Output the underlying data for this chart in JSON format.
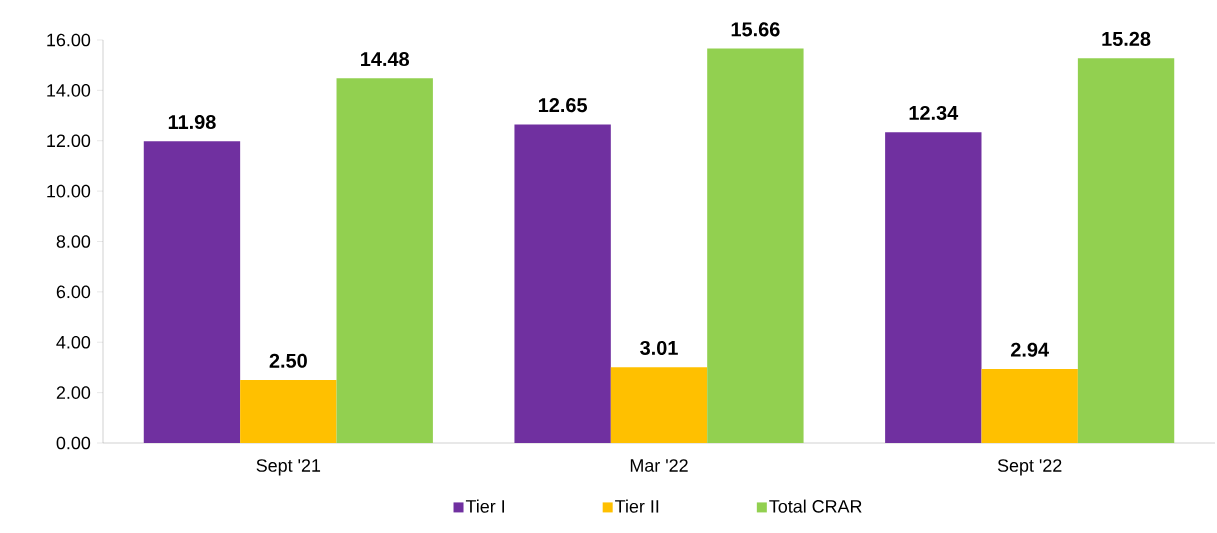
{
  "chart_data": {
    "type": "bar",
    "categories": [
      "Sept '21",
      "Mar '22",
      "Sept '22"
    ],
    "series": [
      {
        "name": "Tier I",
        "color": "#7030a0",
        "values": [
          11.98,
          12.65,
          12.34
        ],
        "value_labels": [
          "11.98",
          "12.65",
          "12.34"
        ]
      },
      {
        "name": "Tier II",
        "color": "#ffc000",
        "values": [
          2.5,
          3.01,
          2.94
        ],
        "value_labels": [
          "2.50",
          "3.01",
          "2.94"
        ]
      },
      {
        "name": "Total CRAR",
        "color": "#92d050",
        "values": [
          14.48,
          15.66,
          15.28
        ],
        "value_labels": [
          "14.48",
          "15.66",
          "15.28"
        ]
      }
    ],
    "ylim": [
      0,
      16
    ],
    "yticks": [
      {
        "value": 0,
        "label": "0.00"
      },
      {
        "value": 2,
        "label": "2.00"
      },
      {
        "value": 4,
        "label": "4.00"
      },
      {
        "value": 6,
        "label": "6.00"
      },
      {
        "value": 8,
        "label": "8.00"
      },
      {
        "value": 10,
        "label": "10.00"
      },
      {
        "value": 12,
        "label": "12.00"
      },
      {
        "value": 14,
        "label": "14.00"
      },
      {
        "value": 16,
        "label": "16.00"
      }
    ],
    "grid": false,
    "legend": "bottom"
  }
}
